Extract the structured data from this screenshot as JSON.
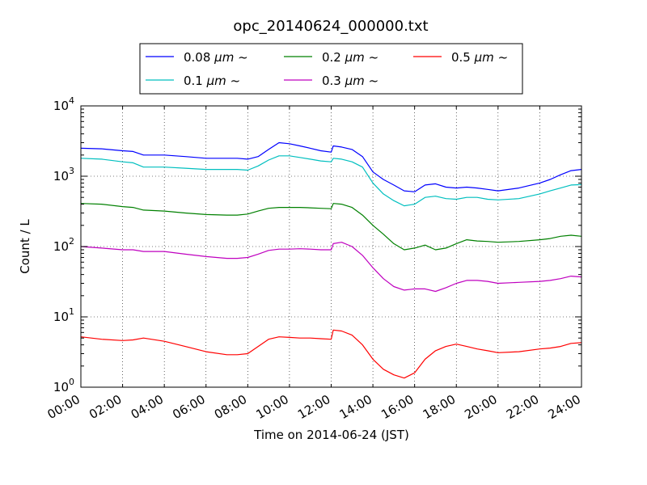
{
  "chart_data": {
    "type": "line",
    "title": "opc_20140624_000000.txt",
    "xlabel": "Time on 2014-06-24 (JST)",
    "ylabel": "Count / L",
    "yscale": "log",
    "xlim": [
      0,
      24
    ],
    "ylim": [
      1,
      10000
    ],
    "grid": true,
    "legend_position": "top-center",
    "x_tick_labels": [
      "00:00",
      "02:00",
      "04:00",
      "06:00",
      "08:00",
      "10:00",
      "12:00",
      "14:00",
      "16:00",
      "18:00",
      "20:00",
      "22:00",
      "24:00"
    ],
    "y_tick_labels": [
      {
        "base": "10",
        "exp": "0"
      },
      {
        "base": "10",
        "exp": "1"
      },
      {
        "base": "10",
        "exp": "2"
      },
      {
        "base": "10",
        "exp": "3"
      },
      {
        "base": "10",
        "exp": "4"
      }
    ],
    "series": [
      {
        "name": "0.08",
        "unit": "μm",
        "suffix": "~",
        "color": "#0000ff",
        "x": [
          0,
          1,
          2,
          2.5,
          3,
          4,
          5,
          6,
          7,
          7.5,
          8,
          8.5,
          9,
          9.5,
          10,
          10.5,
          11,
          11.5,
          12,
          12.1,
          12.5,
          13,
          13.5,
          14,
          14.5,
          15,
          15.5,
          16,
          16.5,
          17,
          17.5,
          18,
          18.5,
          19,
          19.5,
          20,
          21,
          22,
          22.5,
          23,
          23.5,
          24
        ],
        "y": [
          2500,
          2450,
          2300,
          2250,
          2000,
          2000,
          1900,
          1800,
          1800,
          1800,
          1750,
          1900,
          2400,
          3000,
          2900,
          2700,
          2500,
          2300,
          2200,
          2700,
          2600,
          2400,
          1900,
          1150,
          900,
          750,
          620,
          600,
          750,
          780,
          700,
          680,
          700,
          680,
          650,
          620,
          680,
          800,
          900,
          1050,
          1200,
          1250
        ]
      },
      {
        "name": "0.1",
        "unit": "μm",
        "suffix": "~",
        "color": "#00bfbf",
        "x": [
          0,
          1,
          2,
          2.5,
          3,
          4,
          5,
          6,
          7,
          7.5,
          8,
          8.5,
          9,
          9.5,
          10,
          10.5,
          11,
          11.5,
          12,
          12.1,
          12.5,
          13,
          13.5,
          14,
          14.5,
          15,
          15.5,
          16,
          16.5,
          17,
          17.5,
          18,
          18.5,
          19,
          19.5,
          20,
          21,
          22,
          22.5,
          23,
          23.5,
          24
        ],
        "y": [
          1800,
          1750,
          1600,
          1550,
          1350,
          1350,
          1300,
          1250,
          1250,
          1250,
          1220,
          1400,
          1700,
          1950,
          1950,
          1850,
          1750,
          1650,
          1600,
          1800,
          1750,
          1600,
          1350,
          800,
          560,
          450,
          380,
          400,
          500,
          520,
          480,
          470,
          500,
          500,
          470,
          460,
          480,
          560,
          620,
          680,
          750,
          760
        ]
      },
      {
        "name": "0.2",
        "unit": "μm",
        "suffix": "~",
        "color": "#008000",
        "x": [
          0,
          1,
          2,
          2.5,
          3,
          4,
          5,
          6,
          7,
          7.5,
          8,
          8.5,
          9,
          9.5,
          10,
          10.5,
          11,
          11.5,
          12,
          12.1,
          12.5,
          13,
          13.5,
          14,
          14.5,
          15,
          15.5,
          16,
          16.5,
          17,
          17.5,
          18,
          18.5,
          19,
          19.5,
          20,
          21,
          22,
          22.5,
          23,
          23.5,
          24
        ],
        "y": [
          410,
          400,
          370,
          360,
          330,
          320,
          300,
          285,
          280,
          280,
          290,
          320,
          350,
          360,
          360,
          360,
          355,
          350,
          345,
          410,
          400,
          360,
          280,
          200,
          150,
          110,
          90,
          95,
          105,
          90,
          95,
          110,
          125,
          120,
          118,
          115,
          118,
          125,
          130,
          140,
          145,
          140
        ]
      },
      {
        "name": "0.3",
        "unit": "μm",
        "suffix": "~",
        "color": "#bf00bf",
        "x": [
          0,
          1,
          2,
          2.5,
          3,
          4,
          5,
          6,
          7,
          7.5,
          8,
          8.5,
          9,
          9.5,
          10,
          10.5,
          11,
          11.5,
          12,
          12.1,
          12.5,
          13,
          13.5,
          14,
          14.5,
          15,
          15.5,
          16,
          16.5,
          17,
          17.5,
          18,
          18.5,
          19,
          19.5,
          20,
          21,
          22,
          22.5,
          23,
          23.5,
          24
        ],
        "y": [
          100,
          95,
          90,
          90,
          85,
          85,
          78,
          72,
          68,
          68,
          70,
          78,
          88,
          92,
          92,
          93,
          92,
          90,
          90,
          110,
          115,
          100,
          75,
          50,
          35,
          27,
          24,
          25,
          25,
          23,
          26,
          30,
          33,
          33,
          32,
          30,
          31,
          32,
          33,
          35,
          38,
          37
        ]
      },
      {
        "name": "0.5",
        "unit": "μm",
        "suffix": "~",
        "color": "#ff0000",
        "x": [
          0,
          1,
          2,
          2.5,
          3,
          4,
          5,
          6,
          7,
          7.5,
          8,
          8.5,
          9,
          9.5,
          10,
          10.5,
          11,
          11.5,
          12,
          12.1,
          12.5,
          13,
          13.5,
          14,
          14.5,
          15,
          15.5,
          16,
          16.5,
          17,
          17.5,
          18,
          18.5,
          19,
          19.5,
          20,
          21,
          22,
          22.5,
          23,
          23.5,
          24
        ],
        "y": [
          5.2,
          4.8,
          4.6,
          4.7,
          5.0,
          4.5,
          3.8,
          3.2,
          2.9,
          2.9,
          3.0,
          3.8,
          4.8,
          5.2,
          5.1,
          5.0,
          5.0,
          4.9,
          4.8,
          6.5,
          6.3,
          5.5,
          4.0,
          2.5,
          1.8,
          1.5,
          1.35,
          1.6,
          2.5,
          3.3,
          3.8,
          4.1,
          3.8,
          3.5,
          3.3,
          3.1,
          3.2,
          3.5,
          3.6,
          3.8,
          4.2,
          4.3
        ]
      }
    ]
  }
}
